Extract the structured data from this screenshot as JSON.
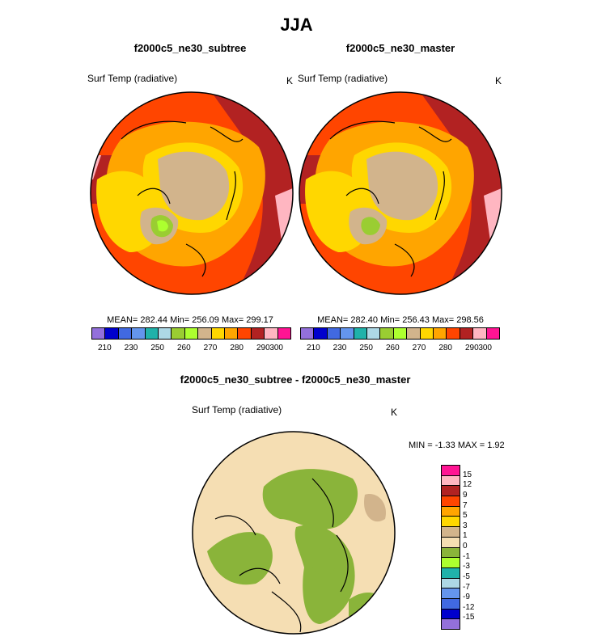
{
  "title": "JJA",
  "panels": [
    {
      "name": "f2000c5_ne30_subtree",
      "variable": "Surf Temp (radiative)",
      "units": "K",
      "stats": "MEAN= 282.44  Min= 256.09  Max= 299.17"
    },
    {
      "name": "f2000c5_ne30_master",
      "variable": "Surf Temp (radiative)",
      "units": "K",
      "stats": "MEAN= 282.40  Min= 256.43  Max= 298.56"
    }
  ],
  "diff_panel": {
    "name": "f2000c5_ne30_subtree - f2000c5_ne30_master",
    "variable": "Surf Temp (radiative)",
    "units": "K",
    "stats": "MIN =  -1.33 MAX =   1.92"
  },
  "colorbar_top": {
    "colors": [
      "#9370db",
      "#0000cd",
      "#4169e1",
      "#6495ed",
      "#20b2aa",
      "#add8e6",
      "#9acd32",
      "#adff2f",
      "#d2b48c",
      "#ffd700",
      "#ffa500",
      "#ff4500",
      "#b22222",
      "#ffb6c1",
      "#ff1493"
    ],
    "labels": [
      "210",
      "230",
      "250",
      "260",
      "270",
      "280",
      "290",
      "300"
    ]
  },
  "colorbar_diff": {
    "colors": [
      "#ff1493",
      "#ffb6c1",
      "#b22222",
      "#ff4500",
      "#ffa500",
      "#ffd700",
      "#d2b48c",
      "#f5deb3",
      "#8ab43a",
      "#adff2f",
      "#20b2aa",
      "#add8e6",
      "#6495ed",
      "#4169e1",
      "#0000cd",
      "#9370db"
    ],
    "labels": [
      "15",
      "12",
      "9",
      "7",
      "5",
      "3",
      "1",
      "0",
      "-1",
      "-3",
      "-5",
      "-7",
      "-9",
      "-12",
      "-15"
    ]
  },
  "map_colors": {
    "ocean_warm": "#ff4500",
    "ocean_hot": "#b22222",
    "mid": "#ffa500",
    "cool": "#ffd700",
    "ice": "#d2b48c",
    "greenland": "#9acd32",
    "pink": "#ffb6c1",
    "diff_base": "#f5deb3",
    "diff_green": "#8ab43a",
    "diff_tan": "#d2b48c"
  }
}
